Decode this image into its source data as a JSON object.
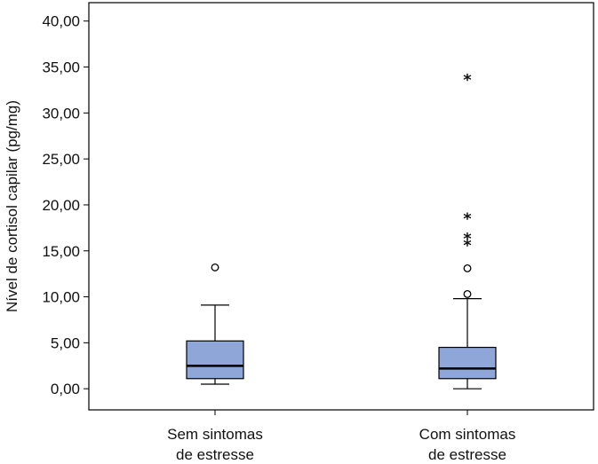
{
  "chart_data": {
    "type": "boxplot",
    "ylabel": "Nível de cortisol capilar (pg/mg)",
    "xlabel": "",
    "ylim": [
      -2.3,
      42.0
    ],
    "yticks": [
      {
        "value": 0,
        "label": "0,00"
      },
      {
        "value": 5,
        "label": "5,00"
      },
      {
        "value": 10,
        "label": "10,00"
      },
      {
        "value": 15,
        "label": "15,00"
      },
      {
        "value": 20,
        "label": "20,00"
      },
      {
        "value": 25,
        "label": "25,00"
      },
      {
        "value": 30,
        "label": "30,00"
      },
      {
        "value": 35,
        "label": "35,00"
      },
      {
        "value": 40,
        "label": "40,00"
      }
    ],
    "categories": [
      {
        "line1": "Sem sintomas",
        "line2": "de estresse"
      },
      {
        "line1": "Com sintomas",
        "line2": "de estresse"
      }
    ],
    "boxes": [
      {
        "whisker_low": 0.5,
        "q1": 1.1,
        "median": 2.5,
        "q3": 5.2,
        "whisker_high": 9.1,
        "outliers": [
          13.2
        ],
        "extremes": []
      },
      {
        "whisker_low": 0.0,
        "q1": 1.1,
        "median": 2.2,
        "q3": 4.5,
        "whisker_high": 9.8,
        "outliers": [
          10.3,
          13.1
        ],
        "extremes": [
          15.9,
          16.6,
          18.8,
          33.9
        ]
      }
    ],
    "box_color": "#8EA6D8",
    "extreme_symbol": "*",
    "grid": false,
    "legend": "none"
  }
}
